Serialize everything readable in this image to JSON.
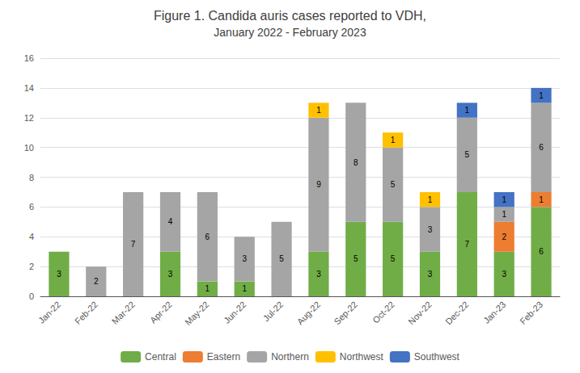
{
  "chart_data": {
    "type": "bar",
    "title": "Figure 1. Candida auris cases reported to VDH,",
    "subtitle": "January 2022 - February 2023",
    "categories": [
      "Jan-22",
      "Feb-22",
      "Mar-22",
      "Apr-22",
      "May-22",
      "Jun-22",
      "Jul-22",
      "Aug-22",
      "Sep-22",
      "Oct-22",
      "Nov-22",
      "Dec-22",
      "Jan-23",
      "Feb-23"
    ],
    "series": [
      {
        "name": "Central",
        "color": "#70ad47",
        "values": [
          3,
          0,
          0,
          3,
          1,
          1,
          0,
          3,
          5,
          5,
          3,
          7,
          3,
          6
        ]
      },
      {
        "name": "Eastern",
        "color": "#ed7d31",
        "values": [
          0,
          0,
          0,
          0,
          0,
          0,
          0,
          0,
          0,
          0,
          0,
          0,
          2,
          1
        ]
      },
      {
        "name": "Northern",
        "color": "#a5a5a5",
        "values": [
          0,
          2,
          7,
          4,
          6,
          3,
          5,
          9,
          8,
          5,
          3,
          5,
          1,
          6
        ]
      },
      {
        "name": "Northwest",
        "color": "#ffc000",
        "values": [
          0,
          0,
          0,
          0,
          0,
          0,
          0,
          1,
          0,
          1,
          1,
          0,
          0,
          0
        ]
      },
      {
        "name": "Southwest",
        "color": "#4472c4",
        "values": [
          0,
          0,
          0,
          0,
          0,
          0,
          0,
          0,
          0,
          0,
          0,
          1,
          1,
          1
        ]
      }
    ],
    "stacked": true,
    "data_labels": true,
    "ylim": [
      0,
      16
    ],
    "yticks": [
      0,
      2,
      4,
      6,
      8,
      10,
      12,
      14,
      16
    ],
    "grid": true,
    "legend": "bottom"
  }
}
